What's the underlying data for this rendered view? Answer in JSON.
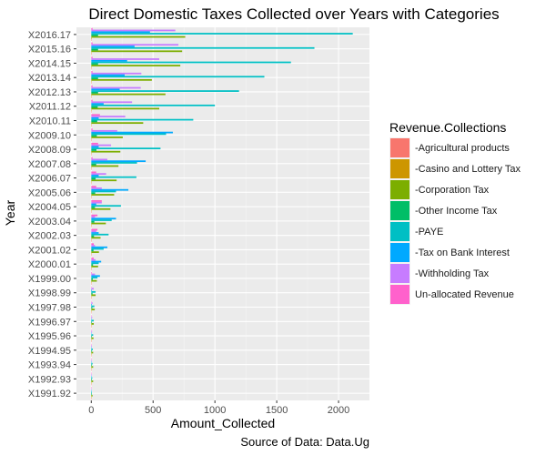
{
  "chart_data": {
    "type": "bar",
    "orientation": "horizontal",
    "title": "Direct Domestic Taxes Collected over Years with Categories",
    "xlabel": "Amount_Collected",
    "ylabel": "Year",
    "caption": "Source of Data: Data.Ug",
    "xlim": [
      -120,
      2250
    ],
    "xticks": [
      0,
      500,
      1000,
      1500,
      2000
    ],
    "xtick_labels": [
      "0",
      "500",
      "1000",
      "1500",
      "2000"
    ],
    "grid": true,
    "legend_placement": "right",
    "legend_title": "Revenue.Collections",
    "categories": [
      "X1991.92",
      "X1992.93",
      "X1993.94",
      "X1994.95",
      "X1995.96",
      "X1996.97",
      "X1997.98",
      "X1998.99",
      "X1999.00",
      "X2000.01",
      "X2001.02",
      "X2002.03",
      "X2003.04",
      "X2004.05",
      "X2005.06",
      "X2006.07",
      "X2007.08",
      "X2008.09",
      "X2009.10",
      "X2010.11",
      "X2011.12",
      "X2012.13",
      "X2013.14",
      "X2014.15",
      "X2015.16",
      "X2016.17"
    ],
    "series": [
      {
        "name": "-Agricultural products",
        "color": "#F8766D",
        "values": [
          0,
          0,
          0,
          0,
          0,
          0,
          0,
          0,
          0,
          0,
          0,
          0,
          0,
          0,
          0,
          0,
          0,
          0,
          0,
          0,
          0,
          0,
          0,
          0,
          0,
          0
        ]
      },
      {
        "name": "-Casino and Lottery Tax",
        "color": "#CD9600",
        "values": [
          0,
          0,
          0,
          0,
          0,
          0,
          0,
          0,
          0,
          0,
          0,
          0,
          0,
          0,
          0,
          0,
          1,
          1,
          1,
          2,
          2,
          2,
          3,
          3,
          3,
          4
        ]
      },
      {
        "name": "-Corporation Tax",
        "color": "#7CAE00",
        "values": [
          10,
          15,
          15,
          15,
          18,
          20,
          28,
          35,
          45,
          55,
          62,
          75,
          118,
          155,
          185,
          205,
          220,
          235,
          255,
          420,
          550,
          600,
          490,
          720,
          735,
          760
        ]
      },
      {
        "name": "-Other Income Tax",
        "color": "#00BE67",
        "values": [
          5,
          5,
          5,
          5,
          5,
          5,
          8,
          10,
          12,
          14,
          18,
          22,
          25,
          30,
          32,
          35,
          40,
          42,
          45,
          48,
          52,
          55,
          55,
          55,
          55,
          55
        ]
      },
      {
        "name": "-PAYE",
        "color": "#00BFC4",
        "values": [
          5,
          8,
          10,
          12,
          15,
          20,
          25,
          35,
          50,
          60,
          100,
          140,
          165,
          240,
          200,
          365,
          370,
          560,
          605,
          825,
          1000,
          1195,
          1400,
          1615,
          1805,
          2115
        ]
      },
      {
        "name": "-Tax on Bank Interest",
        "color": "#00A9FF",
        "values": [
          3,
          3,
          3,
          3,
          3,
          3,
          5,
          5,
          70,
          80,
          130,
          60,
          200,
          40,
          300,
          60,
          440,
          60,
          660,
          60,
          100,
          230,
          270,
          290,
          350,
          475
        ]
      },
      {
        "name": "-Withholding Tax",
        "color": "#C77CFF",
        "values": [
          3,
          4,
          4,
          5,
          6,
          7,
          10,
          20,
          30,
          35,
          30,
          40,
          30,
          85,
          85,
          120,
          130,
          160,
          210,
          275,
          330,
          400,
          405,
          550,
          705,
          680
        ]
      },
      {
        "name": "Un-allocated Revenue",
        "color": "#FF61CC",
        "values": [
          0,
          0,
          0,
          0,
          0,
          0,
          0,
          0,
          5,
          20,
          20,
          50,
          50,
          85,
          40,
          40,
          10,
          55,
          10,
          70,
          10,
          10,
          10,
          10,
          10,
          10
        ]
      }
    ]
  }
}
